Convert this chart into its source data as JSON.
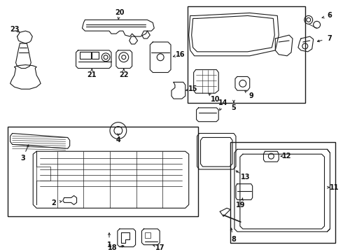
{
  "bg_color": "#ffffff",
  "line_color": "#1a1a1a",
  "lw": 0.8,
  "figsize": [
    4.9,
    3.6
  ],
  "dpi": 100
}
